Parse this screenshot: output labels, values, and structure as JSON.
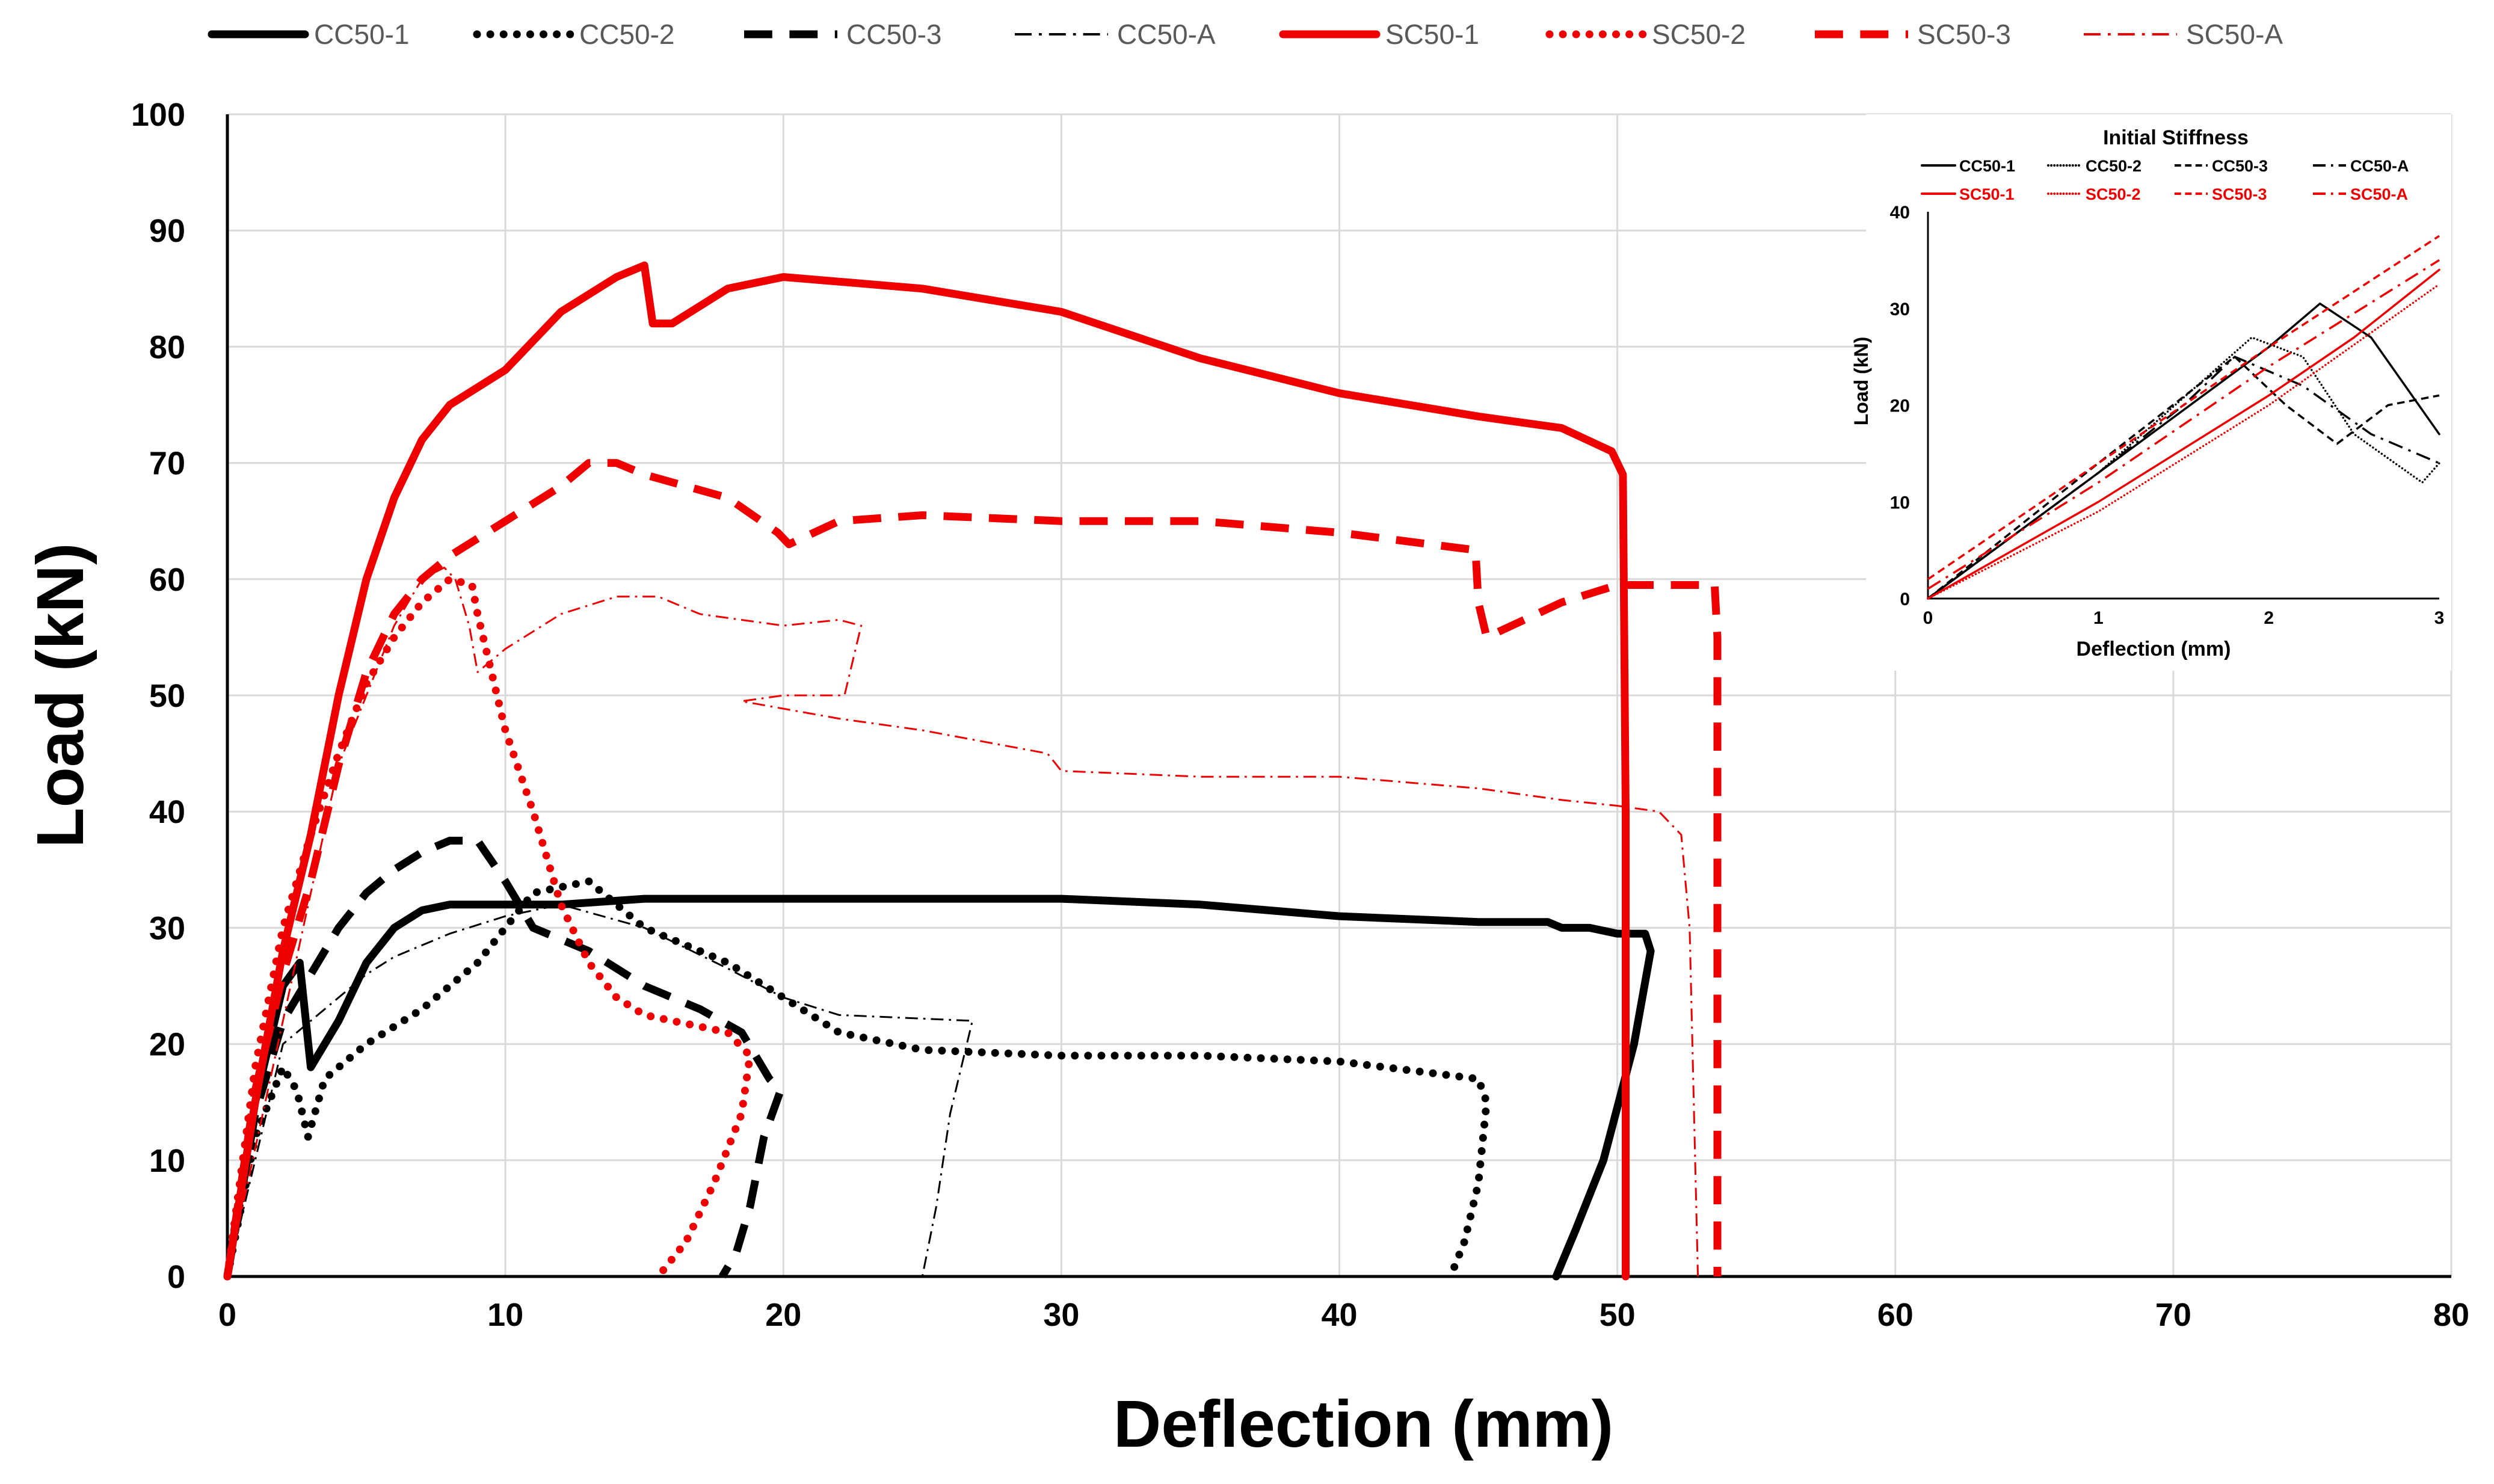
{
  "chart_data": [
    {
      "type": "line",
      "title": "",
      "xlabel": "Deflection (mm)",
      "ylabel": "Load (kN)",
      "xlim": [
        0,
        80
      ],
      "ylim": [
        0,
        100
      ],
      "xticks": [
        0,
        10,
        20,
        30,
        40,
        50,
        60,
        70,
        80
      ],
      "yticks": [
        0,
        10,
        20,
        30,
        40,
        50,
        60,
        70,
        80,
        90,
        100
      ],
      "grid": true,
      "legend_position": "top",
      "series": [
        {
          "name": "CC50-1",
          "color": "#000000",
          "dash": "solid",
          "weight": "heavy",
          "x": [
            0,
            1,
            2,
            2.6,
            3,
            4,
            5,
            6,
            7,
            8,
            9,
            10,
            12,
            15,
            20,
            25,
            30,
            35,
            40,
            45,
            47.5,
            48,
            49,
            50,
            51,
            51.2,
            50.6,
            49.5,
            48.5,
            47.8
          ],
          "y": [
            0,
            15,
            25,
            27,
            18,
            22,
            27,
            30,
            31.5,
            32,
            32,
            32,
            32,
            32.5,
            32.5,
            32.5,
            32.5,
            32,
            31,
            30.5,
            30.5,
            30,
            30,
            29.5,
            29.5,
            28,
            20,
            10,
            4,
            0
          ]
        },
        {
          "name": "CC50-2",
          "color": "#000000",
          "dash": "dotted",
          "weight": "heavy",
          "x": [
            0,
            1,
            2,
            2.5,
            2.9,
            3.5,
            5,
            7,
            9,
            10,
            11,
            13,
            15,
            18,
            20,
            22,
            25,
            30,
            35,
            40,
            45,
            45.3,
            45,
            44.5,
            44
          ],
          "y": [
            0,
            12,
            18,
            16,
            12,
            17,
            20,
            23,
            27,
            30,
            33,
            34,
            30,
            27,
            24,
            21,
            19.5,
            19,
            19,
            18.5,
            17,
            15,
            8,
            3,
            0
          ]
        },
        {
          "name": "CC50-3",
          "color": "#000000",
          "dash": "dashed",
          "weight": "heavy",
          "x": [
            0,
            1,
            2,
            3,
            4,
            5,
            6,
            7,
            8,
            9,
            10,
            11,
            13,
            15,
            17,
            18.5,
            19.5,
            19.9,
            19.3,
            18.8,
            18.3,
            17.8
          ],
          "y": [
            0,
            14,
            22,
            26,
            30,
            33,
            35,
            36.5,
            37.5,
            37.5,
            34,
            30,
            28,
            25,
            23,
            21,
            17,
            16,
            12,
            6,
            2,
            0
          ]
        },
        {
          "name": "CC50-A",
          "color": "#000000",
          "dash": "dashdot",
          "weight": "thin",
          "x": [
            0,
            2,
            3,
            4,
            5,
            6,
            8,
            10,
            12,
            15,
            18,
            20,
            22,
            26.8,
            26,
            25.5,
            25
          ],
          "y": [
            0,
            20,
            22,
            24,
            26,
            27.5,
            29.5,
            31,
            32,
            30,
            26.5,
            24,
            22.5,
            22,
            14,
            6,
            0
          ]
        },
        {
          "name": "SC50-1",
          "color": "#ee0000",
          "dash": "solid",
          "weight": "heavy",
          "x": [
            0,
            1,
            2,
            3,
            4,
            5,
            6,
            7,
            8,
            10,
            12,
            14,
            15,
            15.3,
            16,
            18,
            20,
            25,
            30,
            35,
            40,
            45,
            48,
            49.8,
            50.2,
            50.3,
            50.3
          ],
          "y": [
            0,
            15,
            28,
            38,
            50,
            60,
            67,
            72,
            75,
            78,
            83,
            86,
            87,
            82,
            82,
            85,
            86,
            85,
            83,
            79,
            76,
            74,
            73,
            71,
            69,
            40,
            0
          ]
        },
        {
          "name": "SC50-2",
          "color": "#ee0000",
          "dash": "dotted",
          "weight": "heavy",
          "x": [
            0,
            1,
            2,
            3,
            4,
            5,
            6,
            7,
            8,
            8.8,
            9,
            9.5,
            10,
            11,
            12,
            13,
            14,
            15,
            16,
            17,
            18,
            18.8,
            18.5,
            17.5,
            16.5,
            15.5
          ],
          "y": [
            0,
            18,
            30,
            38,
            45,
            51,
            55,
            58,
            60,
            59.5,
            57,
            52,
            47,
            40,
            32,
            27,
            24,
            22.5,
            22,
            21.5,
            21,
            19,
            14,
            8,
            3,
            0
          ]
        },
        {
          "name": "SC50-3",
          "color": "#ee0000",
          "dash": "dashed",
          "weight": "heavy",
          "x": [
            0,
            1,
            2,
            3,
            4,
            5,
            6,
            7,
            8,
            9,
            10,
            12,
            13,
            14,
            15,
            18,
            19.8,
            20.2,
            22,
            25,
            30,
            35,
            40,
            44.9,
            45,
            45.3,
            48,
            50,
            53.5,
            53.6,
            53.6
          ],
          "y": [
            0,
            16,
            26,
            34,
            44,
            52,
            57,
            60,
            62,
            63.5,
            65,
            68,
            70,
            70,
            69,
            67,
            64,
            63,
            65,
            65.5,
            65,
            65,
            64,
            62.5,
            58,
            55,
            58,
            59.5,
            59.5,
            55,
            0
          ]
        },
        {
          "name": "SC50-A",
          "color": "#ee0000",
          "dash": "dashdot",
          "weight": "thin",
          "x": [
            0,
            2,
            4,
            6,
            7,
            7.8,
            8.2,
            8.7,
            9,
            10,
            12,
            14,
            15.5,
            17,
            20,
            22,
            22.8,
            22.2,
            20,
            18.5,
            22,
            25,
            29.5,
            30,
            35,
            40,
            45,
            48,
            50,
            51.5,
            52.3,
            52.6,
            52.8,
            52.9
          ],
          "y": [
            0,
            22,
            44,
            56,
            60,
            61,
            60,
            56,
            52,
            54,
            57,
            58.5,
            58.5,
            57,
            56,
            56.5,
            56,
            50,
            50,
            49.5,
            48,
            47,
            45,
            43.5,
            43,
            43,
            42,
            41,
            40.5,
            40,
            38,
            30,
            10,
            0
          ]
        }
      ]
    },
    {
      "type": "line",
      "title": "Initial Stiffness",
      "xlabel": "Deflection (mm)",
      "ylabel": "Load (kN)",
      "xlim": [
        0,
        3
      ],
      "ylim": [
        0,
        40
      ],
      "xticks": [
        0,
        1,
        2,
        3
      ],
      "yticks": [
        0,
        10,
        20,
        30,
        40
      ],
      "legend_position": "top",
      "series": [
        {
          "name": "CC50-1",
          "color": "#000000",
          "dash": "solid",
          "x": [
            0,
            1,
            2,
            2.3,
            2.6,
            3
          ],
          "y": [
            0,
            13,
            26,
            30.5,
            27,
            17
          ]
        },
        {
          "name": "CC50-2",
          "color": "#000000",
          "dash": "dotted",
          "x": [
            0,
            1,
            1.9,
            2.2,
            2.5,
            2.9,
            3
          ],
          "y": [
            0,
            13,
            27,
            25,
            17,
            12,
            14
          ]
        },
        {
          "name": "CC50-3",
          "color": "#000000",
          "dash": "dashed",
          "x": [
            0,
            1,
            1.8,
            2.1,
            2.4,
            2.7,
            3
          ],
          "y": [
            0,
            14,
            25,
            20,
            16,
            20,
            21
          ]
        },
        {
          "name": "CC50-A",
          "color": "#000000",
          "dash": "dashdot",
          "x": [
            0,
            1,
            1.5,
            1.8,
            2.2,
            2.6,
            3
          ],
          "y": [
            0,
            13,
            20,
            25,
            22,
            17,
            14
          ]
        },
        {
          "name": "SC50-1",
          "color": "#ee0000",
          "dash": "solid",
          "x": [
            0,
            1,
            2,
            2.5,
            3
          ],
          "y": [
            0,
            10,
            21,
            27,
            34
          ]
        },
        {
          "name": "SC50-2",
          "color": "#ee0000",
          "dash": "dotted",
          "x": [
            0,
            1,
            2,
            3
          ],
          "y": [
            0,
            9,
            20,
            32.5
          ]
        },
        {
          "name": "SC50-3",
          "color": "#ee0000",
          "dash": "dashed",
          "x": [
            0,
            1,
            2,
            3
          ],
          "y": [
            2,
            14,
            26,
            37.5
          ]
        },
        {
          "name": "SC50-A",
          "color": "#ee0000",
          "dash": "dashdot",
          "x": [
            0,
            1,
            2,
            3
          ],
          "y": [
            1,
            12,
            24,
            35
          ]
        }
      ]
    }
  ]
}
